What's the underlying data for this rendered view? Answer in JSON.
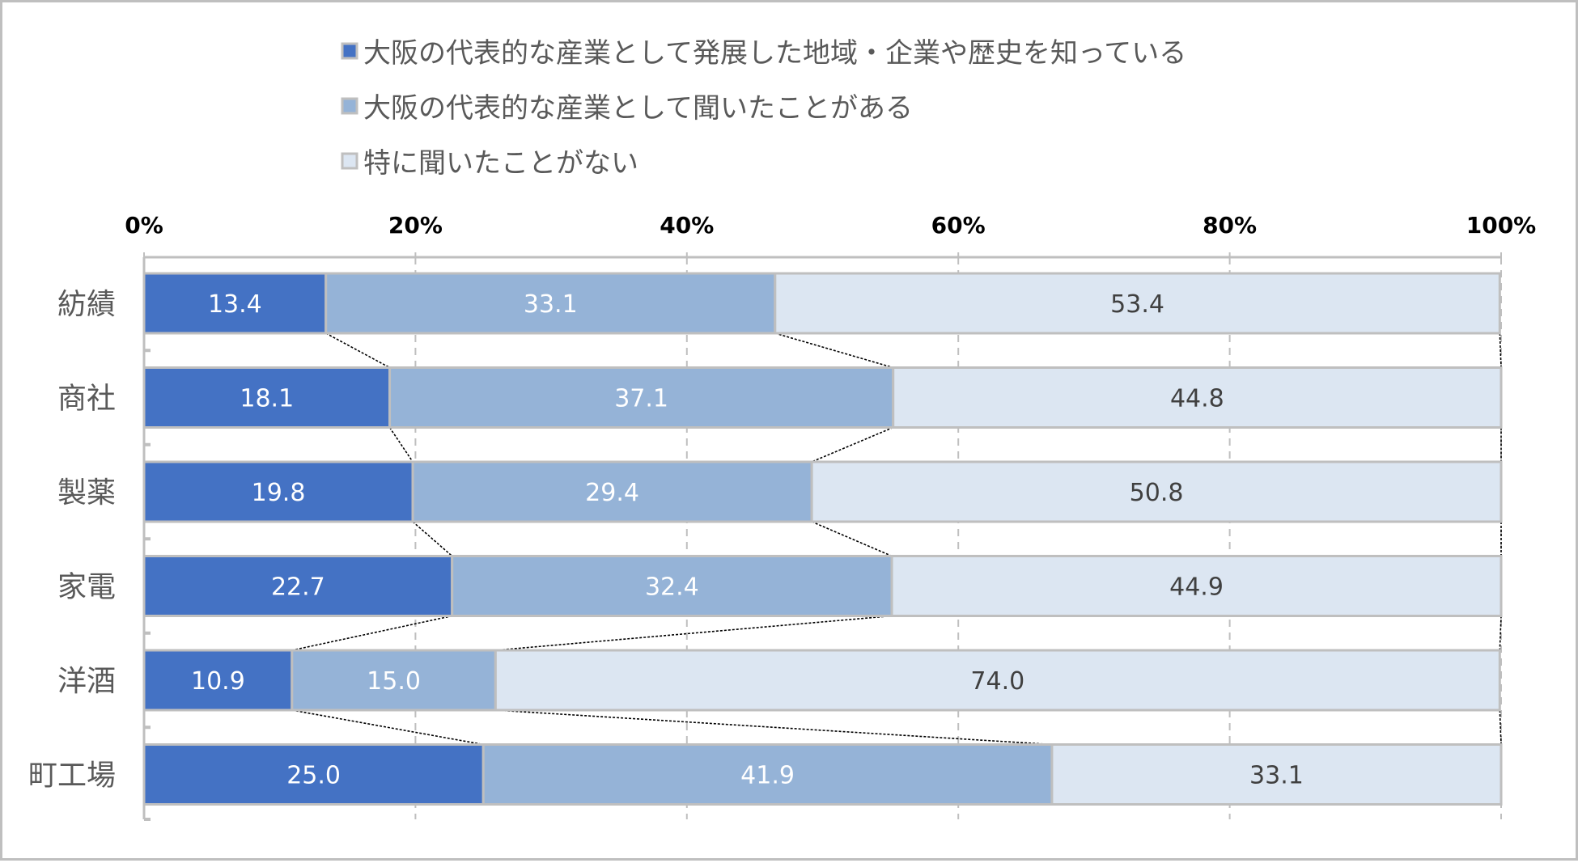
{
  "chart_data": {
    "type": "bar",
    "orientation": "horizontal",
    "stacked": true,
    "percent_stacked": true,
    "title": "",
    "xlabel": "",
    "ylabel": "",
    "xlim": [
      0,
      100
    ],
    "x_ticks": [
      "0%",
      "20%",
      "40%",
      "60%",
      "80%",
      "100%"
    ],
    "x_tick_values": [
      0,
      20,
      40,
      60,
      80,
      100
    ],
    "grid": true,
    "legend_position": "top",
    "series_lines": true,
    "categories": [
      "紡績",
      "商社",
      "製薬",
      "家電",
      "洋酒",
      "町工場"
    ],
    "series": [
      {
        "name": "大阪の代表的な産業として発展した地域・企業や歴史を知っている",
        "color": "#4472c4",
        "values": [
          13.4,
          18.1,
          19.8,
          22.7,
          10.9,
          25.0
        ],
        "labels": [
          "13.4",
          "18.1",
          "19.8",
          "22.7",
          "10.9",
          "25.0"
        ]
      },
      {
        "name": "大阪の代表的な産業として聞いたことがある",
        "color": "#95b3d7",
        "values": [
          33.1,
          37.1,
          29.4,
          32.4,
          15.0,
          41.9
        ],
        "labels": [
          "33.1",
          "37.1",
          "29.4",
          "32.4",
          "15.0",
          "41.9"
        ]
      },
      {
        "name": "特に聞いたことがない",
        "color": "#dce6f2",
        "values": [
          53.4,
          44.8,
          50.8,
          44.9,
          74.0,
          33.1
        ],
        "labels": [
          "53.4",
          "44.8",
          "50.8",
          "44.9",
          "74.0",
          "33.1"
        ]
      }
    ]
  }
}
